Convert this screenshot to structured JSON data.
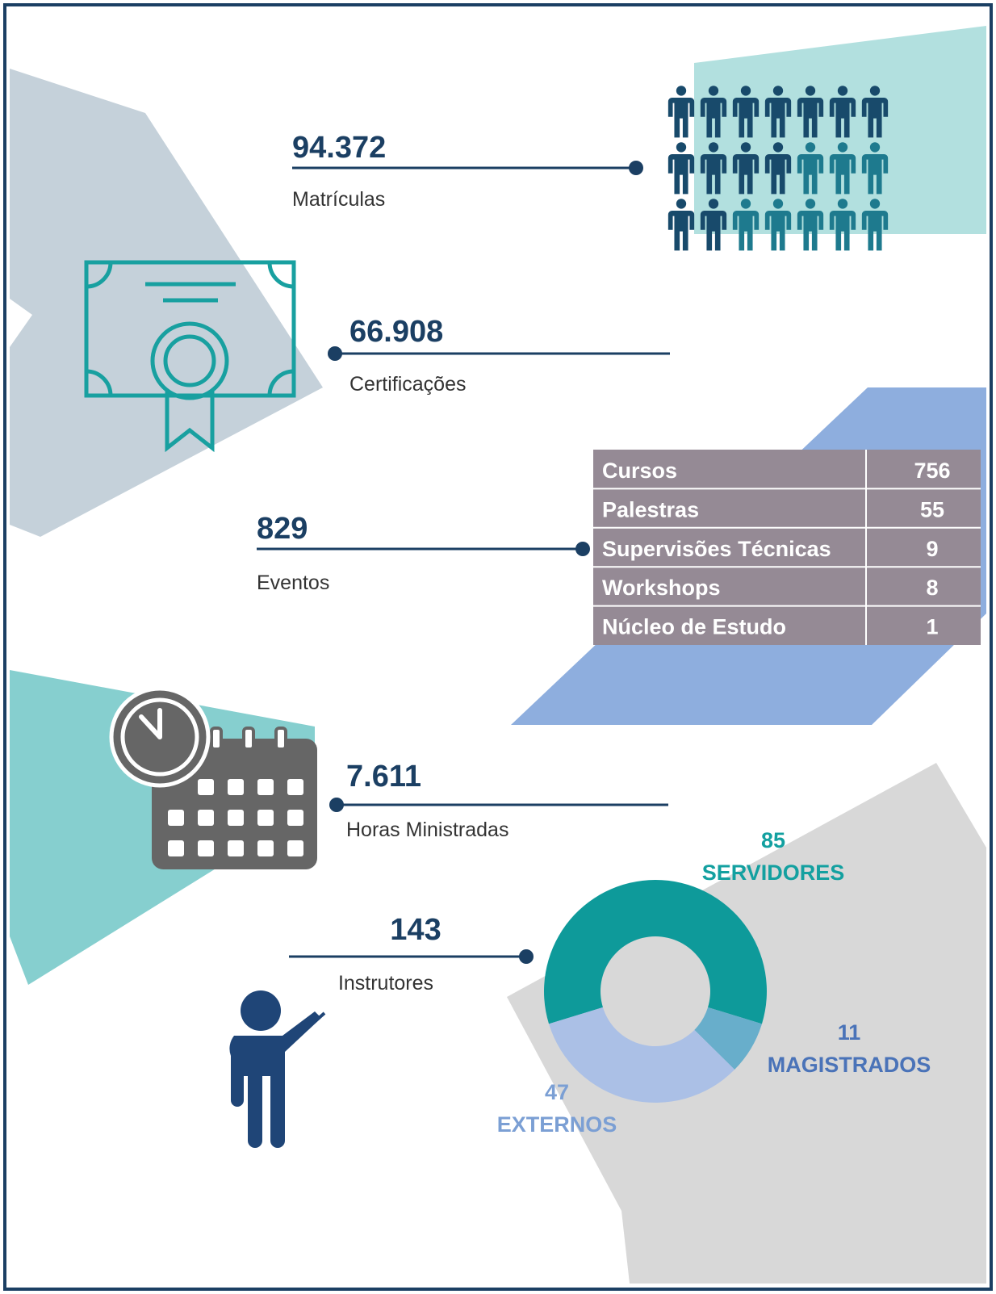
{
  "stats": [
    {
      "value": "94.372",
      "label": "Matrículas"
    },
    {
      "value": "66.908",
      "label": "Certificações"
    },
    {
      "value": "829",
      "label": "Eventos"
    },
    {
      "value": "7.611",
      "label": "Horas Ministradas"
    },
    {
      "value": "143",
      "label": "Instrutores"
    }
  ],
  "table": {
    "rows": [
      [
        "Cursos",
        "756"
      ],
      [
        "Palestras",
        "55"
      ],
      [
        "Supervisões Técnicas",
        "9"
      ],
      [
        "Workshops",
        "8"
      ],
      [
        "Núcleo de Estudo",
        "1"
      ]
    ]
  },
  "donut": {
    "segments": [
      {
        "name": "SERVIDORES",
        "value": 85,
        "color": "#0e9a9a"
      },
      {
        "name": "MAGISTRADOS",
        "value": 11,
        "color": "#68aecb"
      },
      {
        "name": "EXTERNOS",
        "value": 47,
        "color": "#abc0e6"
      }
    ]
  }
}
